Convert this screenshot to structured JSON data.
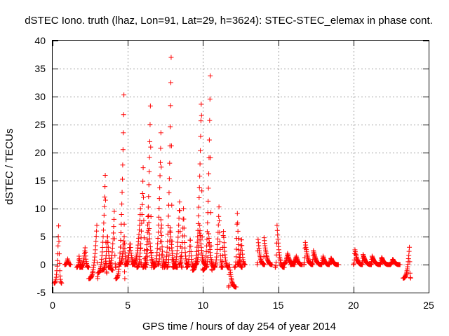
{
  "chart_data": {
    "type": "scatter",
    "title": "dSTEC Iono. truth (lhaz, Lon=91, Lat=29, h=3624): STEC-STEC_elemax in phase cont.",
    "xlabel": "GPS time / hours of day 254 of year 2014",
    "ylabel": "dSTEC  / TECUs",
    "xlim": [
      0,
      25
    ],
    "ylim": [
      -5,
      40
    ],
    "xticks": [
      0,
      5,
      10,
      15,
      20,
      25
    ],
    "yticks": [
      -5,
      0,
      5,
      10,
      15,
      20,
      25,
      30,
      35,
      40
    ],
    "xtick_labels": [
      "0",
      "5",
      "10",
      "15",
      "20",
      "25"
    ],
    "ytick_labels": [
      "-5",
      "0",
      "5",
      "10",
      "15",
      "20",
      "25",
      "30",
      "35",
      "40"
    ],
    "grid": true,
    "marker": "+",
    "marker_color": "#ff0000",
    "arcs": [
      {
        "t0": 0.1,
        "t1": 0.6,
        "min": -3.3,
        "max": 6.9,
        "peak": 0.6
      },
      {
        "t0": 0.8,
        "t1": 1.2,
        "min": 0.0,
        "max": 1.0,
        "peak": 0.5
      },
      {
        "t0": 1.6,
        "t1": 2.0,
        "min": -0.5,
        "max": 1.5,
        "peak": 0.4
      },
      {
        "t0": 1.8,
        "t1": 2.4,
        "min": -0.5,
        "max": 3.0,
        "peak": 0.6
      },
      {
        "t0": 2.4,
        "t1": 3.0,
        "min": -2.5,
        "max": 7.0,
        "peak": 0.9
      },
      {
        "t0": 3.0,
        "t1": 3.6,
        "min": -1.5,
        "max": 17.0,
        "peak": 0.85
      },
      {
        "t0": 3.3,
        "t1": 4.0,
        "min": -1.0,
        "max": 5.5,
        "peak": 0.5
      },
      {
        "t0": 3.7,
        "t1": 4.2,
        "min": -0.5,
        "max": 9.5,
        "peak": 0.8
      },
      {
        "t0": 4.2,
        "t1": 4.8,
        "min": -2.5,
        "max": 30.3,
        "peak": 0.9
      },
      {
        "t0": 4.4,
        "t1": 5.0,
        "min": 0.0,
        "max": 5.0,
        "peak": 0.6
      },
      {
        "t0": 4.8,
        "t1": 5.5,
        "min": 0.0,
        "max": 4.0,
        "peak": 0.5
      },
      {
        "t0": 5.3,
        "t1": 5.9,
        "min": 0.0,
        "max": 10.0,
        "peak": 0.9
      },
      {
        "t0": 5.6,
        "t1": 6.2,
        "min": -0.5,
        "max": 17.3,
        "peak": 0.7
      },
      {
        "t0": 6.0,
        "t1": 6.6,
        "min": -0.5,
        "max": 30.1,
        "peak": 0.85
      },
      {
        "t0": 6.2,
        "t1": 6.8,
        "min": 0.0,
        "max": 8.7,
        "peak": 0.3
      },
      {
        "t0": 6.7,
        "t1": 7.3,
        "min": -0.5,
        "max": 25.0,
        "peak": 0.85
      },
      {
        "t0": 7.0,
        "t1": 7.5,
        "min": 0.0,
        "max": 8.0,
        "peak": 0.4
      },
      {
        "t0": 7.4,
        "t1": 8.0,
        "min": -0.5,
        "max": 37.0,
        "peak": 0.8
      },
      {
        "t0": 7.6,
        "t1": 8.3,
        "min": -0.5,
        "max": 7.0,
        "peak": 0.3
      },
      {
        "t0": 8.0,
        "t1": 8.6,
        "min": -0.5,
        "max": 12.0,
        "peak": 0.75
      },
      {
        "t0": 8.4,
        "t1": 9.0,
        "min": 0.0,
        "max": 10.0,
        "peak": 0.5
      },
      {
        "t0": 8.9,
        "t1": 9.4,
        "min": -0.5,
        "max": 5.0,
        "peak": 0.5
      },
      {
        "t0": 9.3,
        "t1": 10.0,
        "min": -1.0,
        "max": 31.0,
        "peak": 0.85
      },
      {
        "t0": 9.5,
        "t1": 10.2,
        "min": 0.0,
        "max": 7.0,
        "peak": 0.4
      },
      {
        "t0": 10.0,
        "t1": 10.6,
        "min": -1.0,
        "max": 33.7,
        "peak": 0.8
      },
      {
        "t0": 10.2,
        "t1": 10.8,
        "min": -0.5,
        "max": 5.5,
        "peak": 0.3
      },
      {
        "t0": 10.7,
        "t1": 11.3,
        "min": -0.5,
        "max": 10.3,
        "peak": 0.6
      },
      {
        "t0": 11.2,
        "t1": 11.7,
        "min": -0.5,
        "max": 6.5,
        "peak": 0.3
      },
      {
        "t0": 11.7,
        "t1": 12.2,
        "min": -4.0,
        "max": 0.3,
        "peak": 0.1
      },
      {
        "t0": 12.1,
        "t1": 12.6,
        "min": -0.5,
        "max": 9.6,
        "peak": 0.35
      },
      {
        "t0": 12.3,
        "t1": 12.8,
        "min": 0.0,
        "max": 5.0,
        "peak": 0.5
      },
      {
        "t0": 13.6,
        "t1": 14.1,
        "min": 0.0,
        "max": 4.8,
        "peak": 0.1
      },
      {
        "t0": 14.0,
        "t1": 14.6,
        "min": 0.0,
        "max": 4.8,
        "peak": 0.1
      },
      {
        "t0": 14.8,
        "t1": 15.4,
        "min": -0.5,
        "max": 7.0,
        "peak": 0.2
      },
      {
        "t0": 15.3,
        "t1": 16.1,
        "min": 0.0,
        "max": 2.0,
        "peak": 0.4
      },
      {
        "t0": 15.8,
        "t1": 16.6,
        "min": 0.0,
        "max": 1.5,
        "peak": 0.5
      },
      {
        "t0": 16.7,
        "t1": 17.3,
        "min": 0.0,
        "max": 4.2,
        "peak": 0.15
      },
      {
        "t0": 17.2,
        "t1": 17.9,
        "min": 0.0,
        "max": 2.5,
        "peak": 0.2
      },
      {
        "t0": 17.8,
        "t1": 18.4,
        "min": 0.0,
        "max": 1.5,
        "peak": 0.3
      },
      {
        "t0": 18.3,
        "t1": 19.0,
        "min": 0.0,
        "max": 1.2,
        "peak": 0.3
      },
      {
        "t0": 20.0,
        "t1": 20.6,
        "min": 0.0,
        "max": 2.8,
        "peak": 0.15
      },
      {
        "t0": 20.5,
        "t1": 21.2,
        "min": 0.0,
        "max": 1.8,
        "peak": 0.2
      },
      {
        "t0": 21.1,
        "t1": 21.8,
        "min": 0.0,
        "max": 1.5,
        "peak": 0.2
      },
      {
        "t0": 21.7,
        "t1": 22.4,
        "min": 0.0,
        "max": 1.3,
        "peak": 0.25
      },
      {
        "t0": 22.4,
        "t1": 23.1,
        "min": 0.0,
        "max": 1.0,
        "peak": 0.3
      },
      {
        "t0": 23.3,
        "t1": 23.8,
        "min": -2.4,
        "max": 3.3,
        "peak": 0.85
      }
    ]
  }
}
